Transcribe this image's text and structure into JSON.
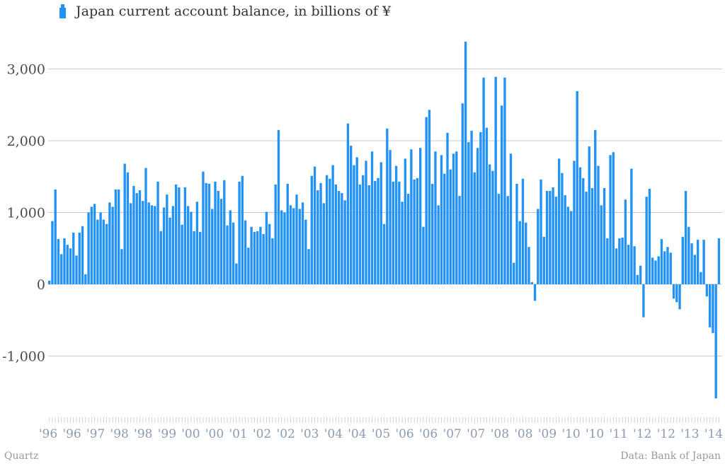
{
  "chart_data": {
    "type": "bar",
    "ylim": [
      -1700,
      3500
    ],
    "yticks": [
      -1000,
      0,
      1000,
      2000,
      3000
    ],
    "ytick_labels": [
      "-1,000",
      "0",
      "1,000",
      "2,000",
      "3,000"
    ],
    "xtick_labels": [
      "'96",
      "'96",
      "'97",
      "'98",
      "'98",
      "'99",
      "'00",
      "'00",
      "'01",
      "'02",
      "'02",
      "'03",
      "'04",
      "'04",
      "'05",
      "'06",
      "'06",
      "'07",
      "'07",
      "'08",
      "'08",
      "'09",
      "'10",
      "'10",
      "'11",
      "'12",
      "'12",
      "'13",
      "'14"
    ],
    "series": [
      {
        "name": "Japan current account balance, in billions of ¥",
        "values": [
          50,
          880,
          1320,
          630,
          420,
          640,
          550,
          500,
          720,
          400,
          720,
          810,
          140,
          1000,
          1080,
          1120,
          900,
          1000,
          900,
          840,
          1140,
          1080,
          1320,
          1320,
          490,
          1680,
          1560,
          1130,
          1370,
          1270,
          1310,
          1160,
          1620,
          1140,
          1100,
          1090,
          1430,
          740,
          1070,
          1250,
          930,
          1090,
          1390,
          1350,
          830,
          1350,
          1090,
          1010,
          740,
          1150,
          730,
          1570,
          1410,
          1400,
          1050,
          1430,
          1300,
          1190,
          1450,
          820,
          1030,
          860,
          290,
          1430,
          1510,
          890,
          510,
          800,
          730,
          740,
          800,
          700,
          1010,
          840,
          640,
          1390,
          2150,
          1030,
          1000,
          1400,
          1100,
          1060,
          1250,
          1050,
          1140,
          900,
          490,
          1510,
          1640,
          1310,
          1410,
          1130,
          1520,
          1470,
          1660,
          1390,
          1300,
          1270,
          1170,
          2240,
          1930,
          1660,
          1770,
          1390,
          1520,
          1720,
          1380,
          1850,
          1440,
          1480,
          1700,
          840,
          2170,
          1870,
          1430,
          1650,
          1430,
          1150,
          1750,
          1260,
          1880,
          1460,
          1480,
          1900,
          800,
          2330,
          2430,
          1400,
          1850,
          1100,
          1800,
          1540,
          2110,
          1600,
          1820,
          1850,
          1230,
          2520,
          3380,
          1980,
          2140,
          1560,
          1900,
          2120,
          2880,
          2180,
          1670,
          1580,
          2890,
          1260,
          2490,
          2880,
          1230,
          1820,
          300,
          1400,
          880,
          1470,
          860,
          520,
          30,
          -230,
          1050,
          1460,
          660,
          1300,
          1300,
          1350,
          1220,
          1750,
          1550,
          1240,
          1080,
          1020,
          1720,
          2690,
          1630,
          1480,
          1290,
          1920,
          1340,
          2150,
          1650,
          1100,
          1340,
          640,
          1800,
          1840,
          500,
          640,
          650,
          1180,
          550,
          1610,
          530,
          130,
          260,
          -460,
          1220,
          1330,
          370,
          330,
          390,
          630,
          460,
          520,
          440,
          -200,
          -250,
          -350,
          660,
          1300,
          800,
          570,
          410,
          620,
          170,
          620,
          -170,
          -600,
          -680,
          -1590,
          640
        ]
      }
    ]
  },
  "legend": {
    "label": "Japan current account balance, in billions of ¥",
    "color": "#2392f5"
  },
  "footer": {
    "source_left": "Quartz",
    "source_right": "Data: Bank of Japan"
  },
  "colors": {
    "bar": "#2392f5",
    "grid": "#c8c8c8",
    "ytick_text": "#4a4a4a",
    "xtick_text": "#8a9bb3"
  }
}
